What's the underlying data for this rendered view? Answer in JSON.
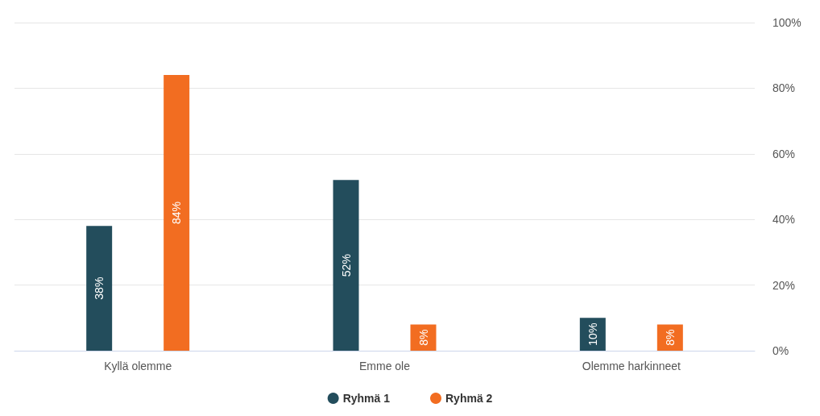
{
  "chart_data": {
    "type": "bar",
    "categories": [
      "Kyllä olemme",
      "Emme ole",
      "Olemme harkinneet"
    ],
    "series": [
      {
        "name": "Ryhmä 1",
        "color": "#234d5c",
        "values": [
          38,
          52,
          10
        ],
        "value_labels": [
          "38%",
          "52%",
          "10%"
        ]
      },
      {
        "name": "Ryhmä 2",
        "color": "#f26d21",
        "values": [
          84,
          8,
          8
        ],
        "value_labels": [
          "84%",
          "8%",
          "8%"
        ]
      }
    ],
    "ylim": [
      0,
      100
    ],
    "yticks": [
      {
        "value": 0,
        "label": "0%"
      },
      {
        "value": 20,
        "label": "20%"
      },
      {
        "value": 40,
        "label": "40%"
      },
      {
        "value": 60,
        "label": "60%"
      },
      {
        "value": 80,
        "label": "80%"
      },
      {
        "value": 100,
        "label": "100%"
      }
    ],
    "grid": "y",
    "legend": "bottom"
  }
}
